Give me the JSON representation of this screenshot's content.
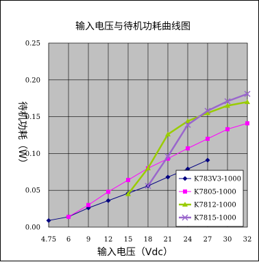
{
  "chart_data": {
    "type": "line",
    "title": "输入电压与待机功耗曲线图",
    "xlabel": "输入电压（Vdc）",
    "ylabel": "待机功耗（W）",
    "categories": [
      "4.75",
      "6",
      "9",
      "12",
      "15",
      "18",
      "21",
      "24",
      "27",
      "30",
      "32"
    ],
    "ylim": [
      0,
      0.25
    ],
    "yticks": [
      "0.00",
      "0.05",
      "0.10",
      "0.15",
      "0.20",
      "0.25"
    ],
    "grid": true,
    "legend_position": "bottom-right",
    "plot_background": "#c0c0c0",
    "series": [
      {
        "name": "K783V3-1000",
        "color": "#000080",
        "marker": "diamond",
        "values": [
          0.009,
          0.014,
          0.026,
          0.036,
          0.046,
          0.056,
          0.068,
          0.079,
          0.091,
          null,
          null
        ]
      },
      {
        "name": "K7805-1000",
        "color": "#ff00ff",
        "marker": "square",
        "values": [
          null,
          0.014,
          0.03,
          0.048,
          0.064,
          0.08,
          0.093,
          0.107,
          0.12,
          0.133,
          0.141
        ]
      },
      {
        "name": "K7812-1000",
        "color": "#99cc00",
        "marker": "triangle",
        "values": [
          null,
          null,
          null,
          null,
          0.045,
          0.08,
          0.126,
          0.144,
          0.155,
          0.165,
          0.17
        ]
      },
      {
        "name": "K7815-1000",
        "color": "#9966cc",
        "marker": "x",
        "values": [
          null,
          null,
          null,
          null,
          null,
          0.056,
          0.096,
          0.139,
          0.158,
          0.171,
          0.181
        ]
      }
    ]
  }
}
